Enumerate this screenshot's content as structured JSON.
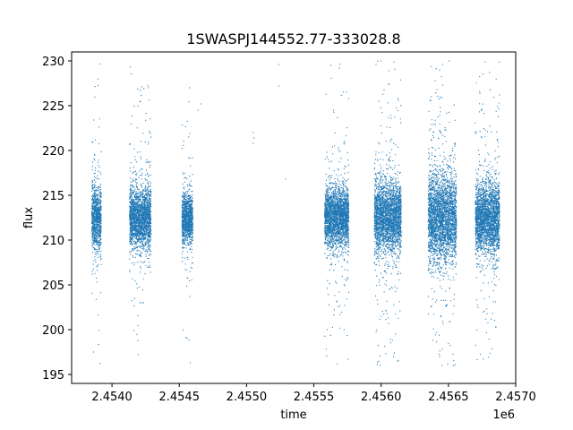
{
  "chart_data": {
    "type": "scatter",
    "title": "1SWASPJ144552.77-333028.8",
    "xlabel": "time",
    "ylabel": "flux",
    "x_offset_label": "1e6",
    "xlim": [
      2453700,
      2457000
    ],
    "ylim": [
      194,
      231
    ],
    "x_ticks": [
      2454000,
      2454500,
      2455000,
      2455500,
      2456000,
      2456500,
      2457000
    ],
    "x_tick_labels": [
      "2.4540",
      "2.4545",
      "2.4550",
      "2.4555",
      "2.4560",
      "2.4565",
      "2.4570"
    ],
    "y_ticks": [
      195,
      200,
      205,
      210,
      215,
      220,
      225,
      230
    ],
    "y_tick_labels": [
      "195",
      "200",
      "205",
      "210",
      "215",
      "220",
      "225",
      "230"
    ],
    "grid": false,
    "marker_color": "#1f77b4",
    "observing_seasons": [
      {
        "x_start": 2453850,
        "x_end": 2453920,
        "center": 212.5,
        "spread": 3.5,
        "min": 196,
        "max": 230
      },
      {
        "x_start": 2454130,
        "x_end": 2454200,
        "center": 212.5,
        "spread": 3.0,
        "min": 197,
        "max": 230
      },
      {
        "x_start": 2454200,
        "x_end": 2454290,
        "center": 212.5,
        "spread": 3.0,
        "min": 203,
        "max": 229
      },
      {
        "x_start": 2454520,
        "x_end": 2454600,
        "center": 212.5,
        "spread": 2.5,
        "min": 196,
        "max": 228
      },
      {
        "x_start": 2455580,
        "x_end": 2455760,
        "center": 212.5,
        "spread": 3.0,
        "min": 196,
        "max": 230
      },
      {
        "x_start": 2455950,
        "x_end": 2456150,
        "center": 212.5,
        "spread": 3.5,
        "min": 196,
        "max": 230
      },
      {
        "x_start": 2456350,
        "x_end": 2456560,
        "center": 212.5,
        "spread": 4.5,
        "min": 196,
        "max": 230
      },
      {
        "x_start": 2456700,
        "x_end": 2456880,
        "center": 212.5,
        "spread": 3.5,
        "min": 196,
        "max": 230
      }
    ],
    "isolated_points": [
      {
        "x": 2454640,
        "y": 224.5
      },
      {
        "x": 2454660,
        "y": 225.2
      },
      {
        "x": 2455050,
        "y": 222.0
      },
      {
        "x": 2455050,
        "y": 220.8
      },
      {
        "x": 2455055,
        "y": 221.4
      },
      {
        "x": 2455240,
        "y": 229.6
      },
      {
        "x": 2455240,
        "y": 227.2
      },
      {
        "x": 2455290,
        "y": 216.8
      }
    ]
  }
}
